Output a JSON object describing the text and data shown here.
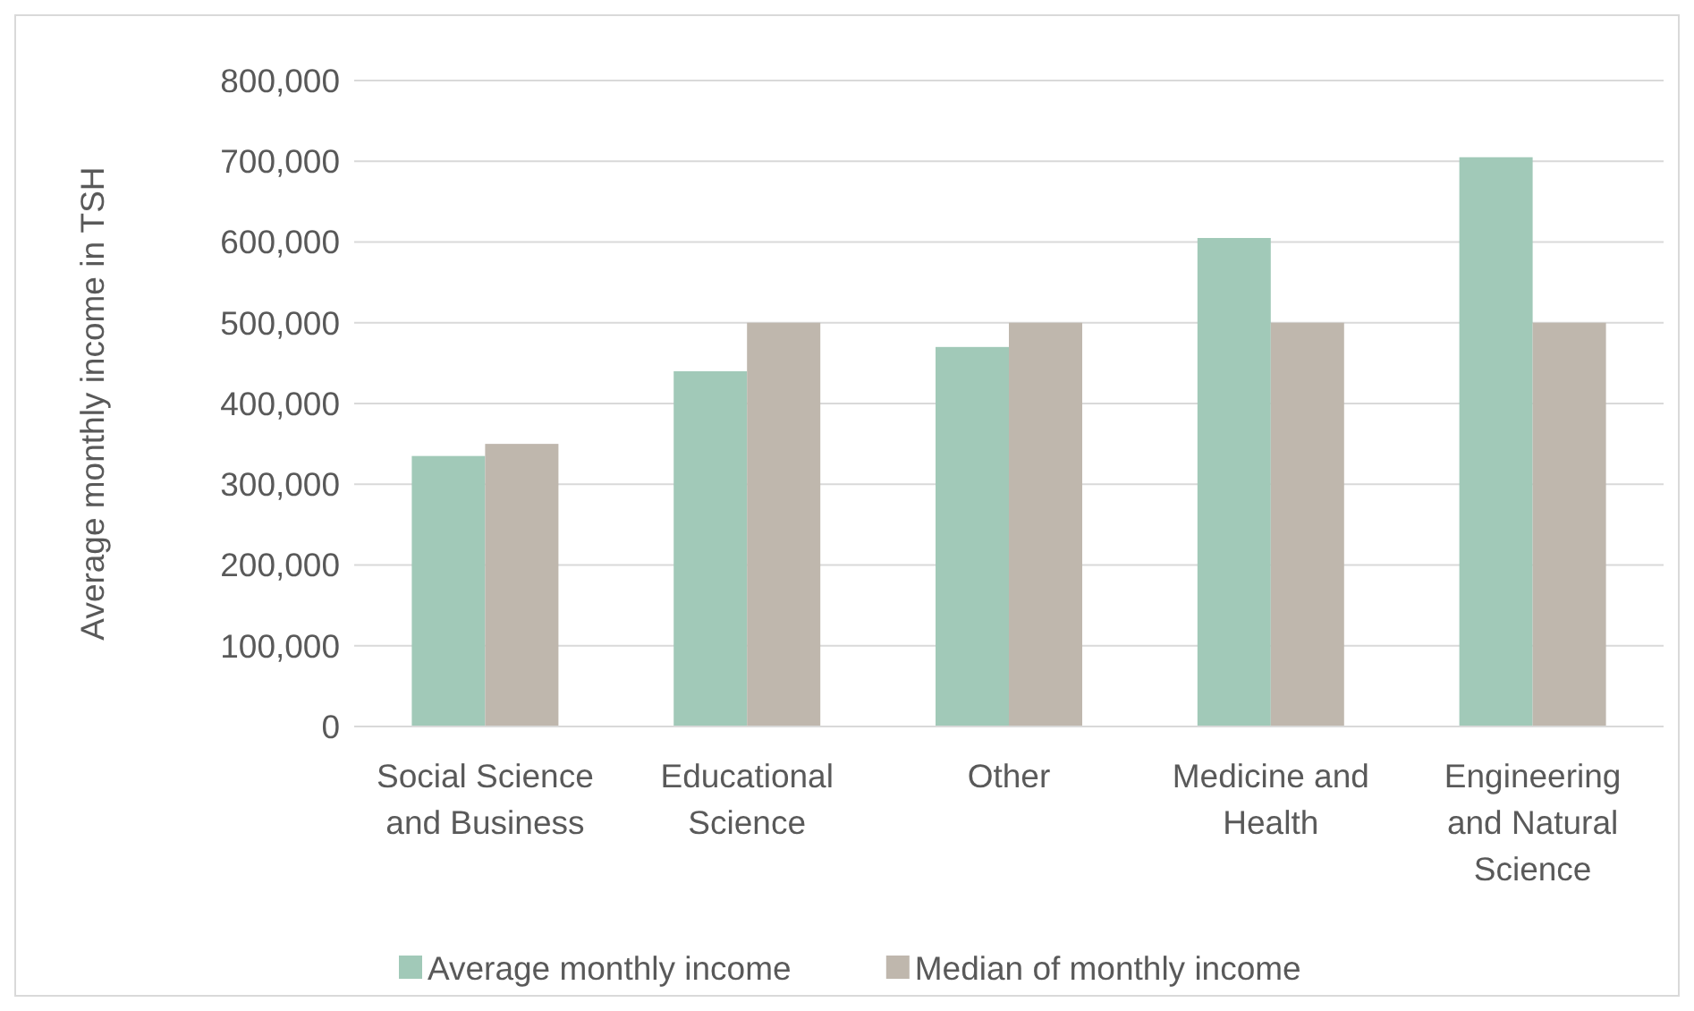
{
  "chart_data": {
    "type": "bar",
    "ylabel": "Average monthly income in TSH",
    "categories": [
      "Social Science and Business",
      "Educational Science",
      "Other",
      "Medicine and Health",
      "Engineering and Natural Science"
    ],
    "series": [
      {
        "name": "Average monthly income",
        "color": "#a1c9b8",
        "values": [
          335000,
          440000,
          470000,
          605000,
          705000
        ]
      },
      {
        "name": "Median of monthly income",
        "color": "#bfb7ad",
        "values": [
          350000,
          500000,
          500000,
          500000,
          500000
        ]
      }
    ],
    "ylim": [
      0,
      800000
    ],
    "yticks": [
      {
        "value": 0,
        "label": "0"
      },
      {
        "value": 100000,
        "label": "100,000"
      },
      {
        "value": 200000,
        "label": "200,000"
      },
      {
        "value": 300000,
        "label": "300,000"
      },
      {
        "value": 400000,
        "label": "400,000"
      },
      {
        "value": 500000,
        "label": "500,000"
      },
      {
        "value": 600000,
        "label": "600,000"
      },
      {
        "value": 700000,
        "label": "700,000"
      },
      {
        "value": 800000,
        "label": "800,000"
      }
    ],
    "grid": "y",
    "legend": "bottom"
  }
}
